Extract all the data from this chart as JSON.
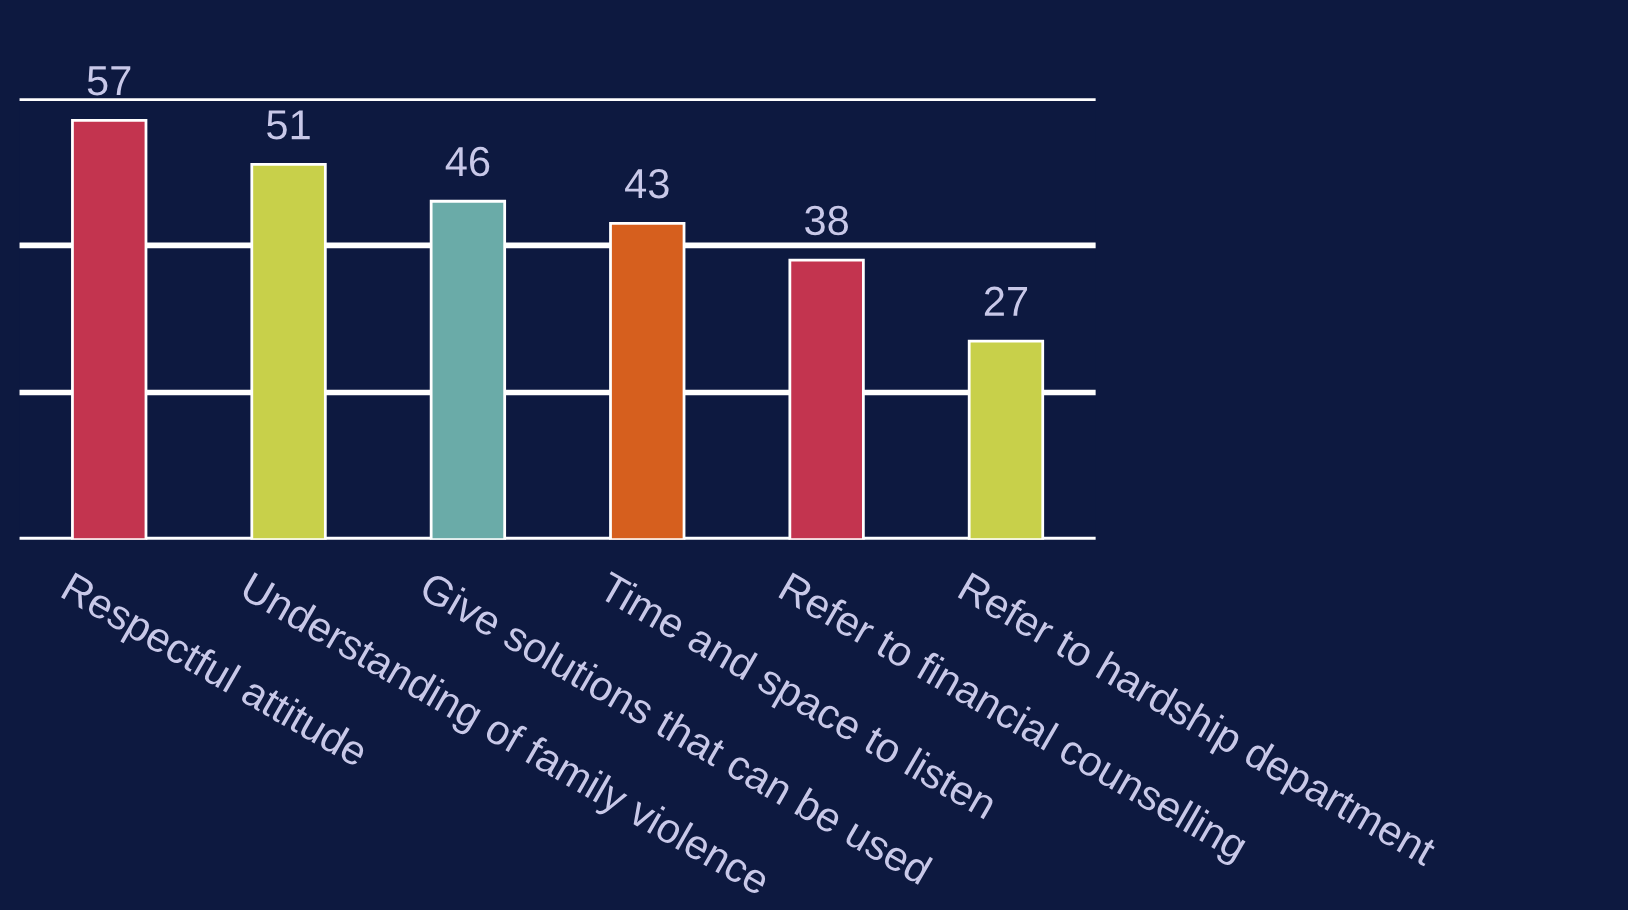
{
  "chart_data": {
    "type": "bar",
    "categories": [
      "Respectful attitude",
      "Understanding of family violence",
      "Give solutions that can be used",
      "Time and space to listen",
      "Refer to financial counselling",
      "Refer to hardship department"
    ],
    "values": [
      57,
      51,
      46,
      43,
      38,
      27
    ],
    "colors": [
      "#c3344f",
      "#c8d04a",
      "#6aaba8",
      "#d65f1e",
      "#c3344f",
      "#c8d04a"
    ],
    "ylim": [
      0,
      60
    ],
    "yticks": [
      {
        "value": 0,
        "label": null
      },
      {
        "value": 20,
        "label": null
      },
      {
        "value": 40,
        "label": null
      },
      {
        "value": 60,
        "label": null
      }
    ],
    "grid": "y",
    "data_labels": true,
    "tick_labels": "x"
  }
}
